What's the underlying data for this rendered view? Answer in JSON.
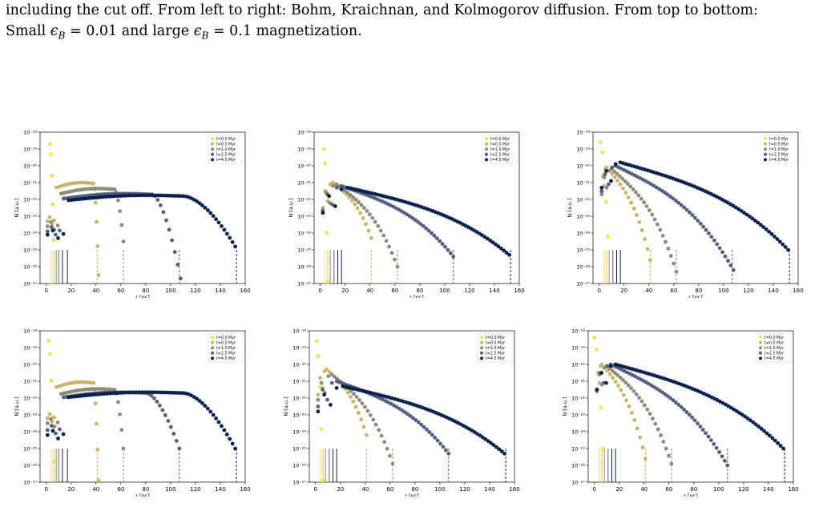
{
  "caption": {
    "line1": "including the cut off. From left to right: Bohm, Kraichnan, and Kolmogorov diffusion. From top to bottom:",
    "line2_prefix": "Small ",
    "line2_eps1": "ϵ",
    "line2_sub1": "B",
    "line2_mid": " = 0.01 and large ",
    "line2_eps2": "ϵ",
    "line2_sub2": "B",
    "line2_suffix": " = 0.1 magnetization."
  },
  "colors": {
    "series": [
      "#f4e04d",
      "#c9b466",
      "#8f8a7a",
      "#55607e",
      "#0b234c"
    ]
  },
  "chart_data": [
    {
      "type": "scatter",
      "panel": "top-left",
      "xlabel": "r [pc]",
      "ylabel": "N [a.u.]",
      "xlim": [
        -5,
        160
      ],
      "ylim_log10": [
        -27,
        -18
      ],
      "yscale": "log",
      "xticks": [
        "0",
        "20",
        "40",
        "60",
        "80",
        "100",
        "120",
        "140",
        "160"
      ],
      "yticks": [
        "10⁻¹⁸",
        "10⁻¹⁹",
        "10⁻²⁰",
        "10⁻²¹",
        "10⁻²²",
        "10⁻²³",
        "10⁻²⁴",
        "10⁻²⁵",
        "10⁻²⁶",
        "10⁻²⁷"
      ],
      "legend": [
        "t=0.0 Myr",
        "t=0.5 Myr",
        "t=1.0 Myr",
        "t=2.5 Myr",
        "t=4.5 Myr"
      ],
      "legend_position": "top-right",
      "series": [
        {
          "name": "t=0.0 Myr",
          "shape": "peak",
          "peak_x": 3,
          "peak_log10": -18.7,
          "end_x": 6,
          "end_log10": -24.4,
          "cutoff_x": 6
        },
        {
          "name": "t=0.5 Myr",
          "shape": "bohm",
          "plateau_start": 8,
          "plateau_end": 38,
          "plateau_log10": -21.05,
          "end_x": 42,
          "end_log10": -26.5,
          "cutoff_x": 41,
          "inner_log10": -23.3
        },
        {
          "name": "t=1.0 Myr",
          "shape": "bohm",
          "plateau_start": 12,
          "plateau_end": 55,
          "plateau_log10": -21.4,
          "end_x": 62,
          "end_log10": -24.5,
          "cutoff_x": 62,
          "inner_log10": -23.6
        },
        {
          "name": "t=2.5 Myr",
          "shape": "bohm",
          "plateau_start": 14,
          "plateau_end": 85,
          "plateau_log10": -21.7,
          "end_x": 108,
          "end_log10": -26.7,
          "cutoff_x": 107,
          "inner_log10": -23.9
        },
        {
          "name": "t=4.5 Myr",
          "shape": "bohm",
          "plateau_start": 18,
          "plateau_end": 110,
          "plateau_log10": -21.8,
          "end_x": 152,
          "end_log10": -24.8,
          "cutoff_x": 153,
          "inner_log10": -24.1
        }
      ],
      "vertical_solid_lines_x": [
        4,
        6,
        8,
        10,
        13,
        17
      ]
    },
    {
      "type": "scatter",
      "panel": "top-middle",
      "xlabel": "r [pc]",
      "ylabel": "N [a.u.]",
      "xlim": [
        -5,
        160
      ],
      "ylim_log10": [
        -27,
        -18
      ],
      "yscale": "log",
      "xticks": [
        "0",
        "20",
        "40",
        "60",
        "80",
        "100",
        "120",
        "140",
        "160"
      ],
      "yticks": [
        "10⁻¹⁸",
        "10⁻¹⁹",
        "10⁻²⁰",
        "10⁻²¹",
        "10⁻²²",
        "10⁻²³",
        "10⁻²⁴",
        "10⁻²⁵",
        "10⁻²⁶",
        "10⁻²⁷"
      ],
      "legend": [
        "t=0.0 Myr",
        "t=0.5 Myr",
        "t=1.0 Myr",
        "t=2.5 Myr",
        "t=4.5 Myr"
      ],
      "legend_position": "top-right",
      "series": [
        {
          "name": "t=0.0 Myr",
          "shape": "peak",
          "peak_x": 3,
          "peak_log10": -19.0,
          "end_x": 6,
          "end_log10": -26.9,
          "cutoff_x": 6
        },
        {
          "name": "t=0.5 Myr",
          "shape": "decay",
          "start_x": 10,
          "start_log10": -21.0,
          "end_x": 41,
          "end_log10": -24.3,
          "cutoff_x": 41
        },
        {
          "name": "t=1.0 Myr",
          "shape": "decay",
          "start_x": 13,
          "start_log10": -21.1,
          "end_x": 62,
          "end_log10": -26.0,
          "cutoff_x": 62
        },
        {
          "name": "t=2.5 Myr",
          "shape": "decay",
          "start_x": 17,
          "start_log10": -21.2,
          "end_x": 107,
          "end_log10": -25.4,
          "cutoff_x": 107
        },
        {
          "name": "t=4.5 Myr",
          "shape": "decay",
          "start_x": 22,
          "start_log10": -21.3,
          "end_x": 152,
          "end_log10": -25.3,
          "cutoff_x": 153
        }
      ],
      "vertical_solid_lines_x": [
        4,
        6,
        8,
        11,
        14,
        17
      ]
    },
    {
      "type": "scatter",
      "panel": "top-right",
      "xlabel": "r [pc]",
      "ylabel": "N [a.u.]",
      "xlim": [
        -5,
        160
      ],
      "ylim_log10": [
        -27,
        -18
      ],
      "yscale": "log",
      "xticks": [
        "0",
        "20",
        "40",
        "60",
        "80",
        "100",
        "120",
        "140",
        "160"
      ],
      "yticks": [
        "10⁻¹⁸",
        "10⁻¹⁹",
        "10⁻²⁰",
        "10⁻²¹",
        "10⁻²²",
        "10⁻²³",
        "10⁻²⁴",
        "10⁻²⁵",
        "10⁻²⁶",
        "10⁻²⁷"
      ],
      "legend": [
        "t=0.0 Myr",
        "t=0.5 Myr",
        "t=1.0 Myr",
        "t=2.5 Myr",
        "t=4.5 Myr"
      ],
      "legend_position": "top-right",
      "series": [
        {
          "name": "t=0.0 Myr",
          "shape": "peak",
          "peak_x": 1,
          "peak_log10": -18.6,
          "end_x": 7,
          "end_log10": -24.2,
          "cutoff_x": 6
        },
        {
          "name": "t=0.5 Myr",
          "shape": "decay",
          "start_x": 6,
          "start_log10": -20.1,
          "end_x": 41,
          "end_log10": -25.6,
          "cutoff_x": 41
        },
        {
          "name": "t=1.0 Myr",
          "shape": "decay",
          "start_x": 10,
          "start_log10": -20.2,
          "end_x": 62,
          "end_log10": -26.3,
          "cutoff_x": 62
        },
        {
          "name": "t=2.5 Myr",
          "shape": "decay",
          "start_x": 13,
          "start_log10": -20.0,
          "end_x": 108,
          "end_log10": -26.2,
          "cutoff_x": 107
        },
        {
          "name": "t=4.5 Myr",
          "shape": "decay",
          "start_x": 17,
          "start_log10": -19.8,
          "end_x": 152,
          "end_log10": -25.0,
          "cutoff_x": 153
        }
      ],
      "vertical_solid_lines_x": [
        4,
        6,
        8,
        11,
        14,
        17
      ]
    },
    {
      "type": "scatter",
      "panel": "bottom-left",
      "xlabel": "r [pc]",
      "ylabel": "N [a.u.]",
      "xlim": [
        -5,
        160
      ],
      "ylim_log10": [
        -27,
        -18
      ],
      "yscale": "log",
      "xticks": [
        "0",
        "20",
        "40",
        "60",
        "80",
        "100",
        "120",
        "140",
        "160"
      ],
      "yticks": [
        "10⁻¹⁸",
        "10⁻¹⁹",
        "10⁻²⁰",
        "10⁻²¹",
        "10⁻²²",
        "10⁻²³",
        "10⁻²⁴",
        "10⁻²⁵",
        "10⁻²⁶",
        "10⁻²⁷"
      ],
      "legend": [
        "t=0.0 Myr",
        "t=0.5 Myr",
        "t=1.0 Myr",
        "t=2.5 Myr",
        "t=4.5 Myr"
      ],
      "legend_position": "top-right",
      "series": [
        {
          "name": "t=0.0 Myr",
          "shape": "peak",
          "peak_x": 2,
          "peak_log10": -18.6,
          "end_x": 6,
          "end_log10": -25.8,
          "cutoff_x": 6
        },
        {
          "name": "t=0.5 Myr",
          "shape": "bohm",
          "plateau_start": 8,
          "plateau_end": 38,
          "plateau_log10": -21.1,
          "end_x": 42,
          "end_log10": -26.9,
          "cutoff_x": 41,
          "inner_log10": -23.2
        },
        {
          "name": "t=1.0 Myr",
          "shape": "bohm",
          "plateau_start": 12,
          "plateau_end": 55,
          "plateau_log10": -21.5,
          "end_x": 62,
          "end_log10": -25.0,
          "cutoff_x": 62,
          "inner_log10": -23.5
        },
        {
          "name": "t=2.5 Myr",
          "shape": "bohm",
          "plateau_start": 14,
          "plateau_end": 80,
          "plateau_log10": -21.7,
          "end_x": 107,
          "end_log10": -25.0,
          "cutoff_x": 107,
          "inner_log10": -23.9
        },
        {
          "name": "t=4.5 Myr",
          "shape": "bohm",
          "plateau_start": 18,
          "plateau_end": 110,
          "plateau_log10": -21.7,
          "end_x": 152,
          "end_log10": -25.0,
          "cutoff_x": 153,
          "inner_log10": -24.2
        }
      ],
      "vertical_solid_lines_x": [
        4,
        6,
        8,
        10,
        13,
        17
      ]
    },
    {
      "type": "scatter",
      "panel": "bottom-middle",
      "xlabel": "r [pc]",
      "ylabel": "N [a.u.]",
      "xlim": [
        -5,
        160
      ],
      "ylim_log10": [
        -27,
        -18
      ],
      "yscale": "log",
      "xticks": [
        "0",
        "20",
        "40",
        "60",
        "80",
        "100",
        "120",
        "140",
        "160"
      ],
      "yticks": [
        "10⁻¹⁸",
        "10⁻¹⁹",
        "10⁻²⁰",
        "10⁻²¹",
        "10⁻²²",
        "10⁻²³",
        "10⁻²⁴",
        "10⁻²⁵",
        "10⁻²⁶",
        "10⁻²⁷"
      ],
      "legend": [
        "t=0.0 Myr",
        "t=0.5 Myr",
        "t=1.0 Myr",
        "t=2.5 Myr",
        "t=4.5 Myr"
      ],
      "legend_position": "top-right",
      "series": [
        {
          "name": "t=0.0 Myr",
          "shape": "peak",
          "peak_x": 1,
          "peak_log10": -18.6,
          "end_x": 6,
          "end_log10": -26.9,
          "cutoff_x": 6
        },
        {
          "name": "t=0.5 Myr",
          "shape": "decay",
          "start_x": 9,
          "start_log10": -20.3,
          "end_x": 41,
          "end_log10": -24.2,
          "cutoff_x": 41
        },
        {
          "name": "t=1.0 Myr",
          "shape": "decay",
          "start_x": 13,
          "start_log10": -20.6,
          "end_x": 62,
          "end_log10": -25.9,
          "cutoff_x": 62
        },
        {
          "name": "t=2.5 Myr",
          "shape": "decay",
          "start_x": 17,
          "start_log10": -21.0,
          "end_x": 107,
          "end_log10": -25.3,
          "cutoff_x": 107
        },
        {
          "name": "t=4.5 Myr",
          "shape": "decay",
          "start_x": 22,
          "start_log10": -21.3,
          "end_x": 152,
          "end_log10": -25.3,
          "cutoff_x": 153
        }
      ],
      "vertical_solid_lines_x": [
        4,
        6,
        8,
        11,
        14,
        17
      ]
    },
    {
      "type": "scatter",
      "panel": "bottom-right",
      "xlabel": "r [pc]",
      "ylabel": "N [a.u.]",
      "xlim": [
        -5,
        160
      ],
      "ylim_log10": [
        -27,
        -18
      ],
      "yscale": "log",
      "xticks": [
        "0",
        "20",
        "40",
        "60",
        "80",
        "100",
        "120",
        "140",
        "160"
      ],
      "yticks": [
        "10⁻¹⁸",
        "10⁻¹⁹",
        "10⁻²⁰",
        "10⁻²¹",
        "10⁻²²",
        "10⁻²³",
        "10⁻²⁴",
        "10⁻²⁵",
        "10⁻²⁶",
        "10⁻²⁷"
      ],
      "legend": [
        "t=0.0 Myr",
        "t=0.5 Myr",
        "t=1.0 Myr",
        "t=2.5 Myr",
        "t=4.5 Myr"
      ],
      "legend_position": "top-right",
      "series": [
        {
          "name": "t=0.0 Myr",
          "shape": "peak",
          "peak_x": 0,
          "peak_log10": -18.4,
          "end_x": 7,
          "end_log10": -25.0,
          "cutoff_x": 6
        },
        {
          "name": "t=0.5 Myr",
          "shape": "decay",
          "start_x": 6,
          "start_log10": -20.0,
          "end_x": 41,
          "end_log10": -25.6,
          "cutoff_x": 41
        },
        {
          "name": "t=1.0 Myr",
          "shape": "decay",
          "start_x": 10,
          "start_log10": -20.1,
          "end_x": 62,
          "end_log10": -25.9,
          "cutoff_x": 62
        },
        {
          "name": "t=2.5 Myr",
          "shape": "decay",
          "start_x": 13,
          "start_log10": -20.0,
          "end_x": 107,
          "end_log10": -26.0,
          "cutoff_x": 107
        },
        {
          "name": "t=4.5 Myr",
          "shape": "decay",
          "start_x": 17,
          "start_log10": -20.0,
          "end_x": 152,
          "end_log10": -25.0,
          "cutoff_x": 153
        }
      ],
      "vertical_solid_lines_x": [
        4,
        6,
        8,
        11,
        14,
        17
      ]
    }
  ]
}
